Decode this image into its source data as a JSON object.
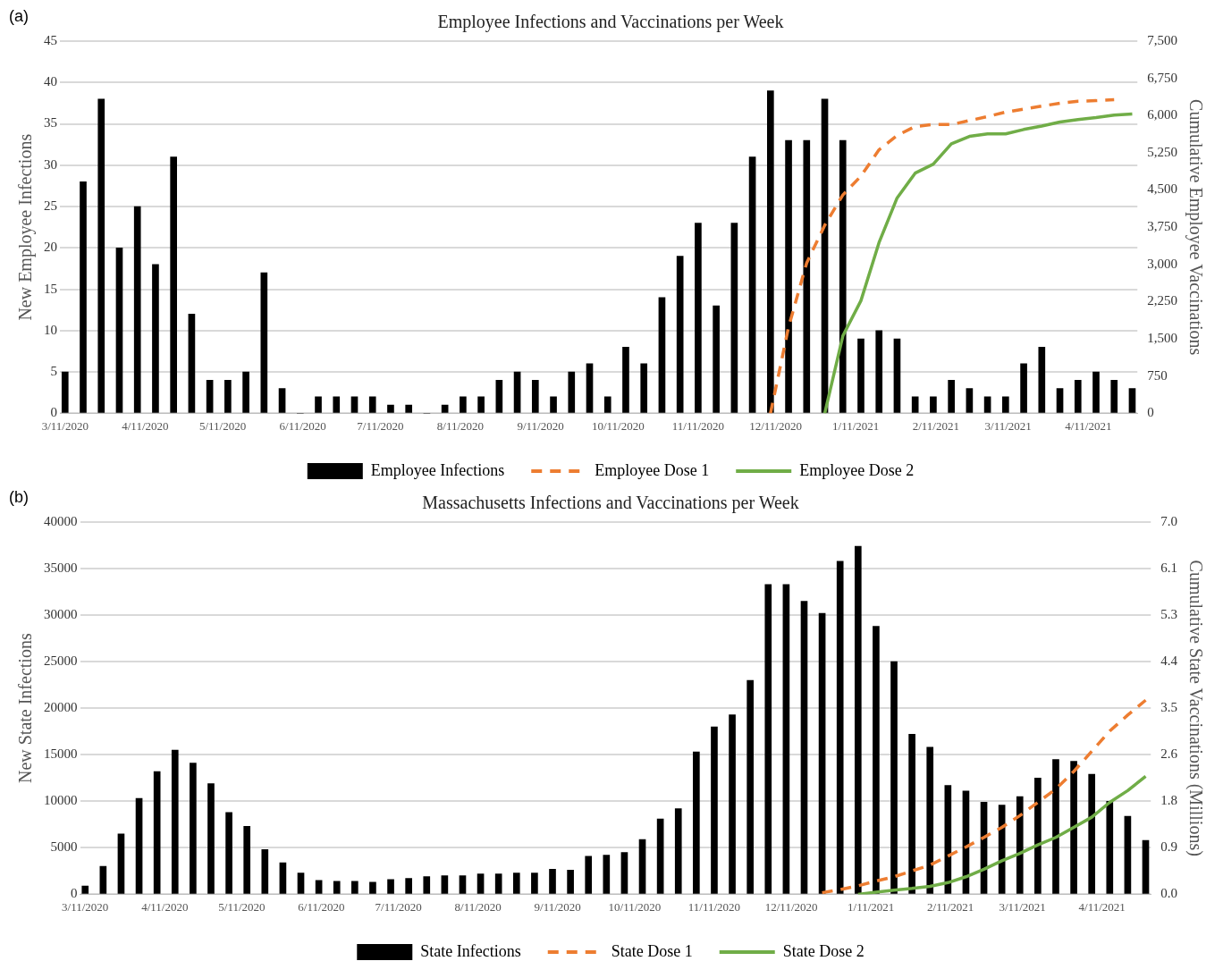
{
  "chart_data": [
    {
      "type": "bar",
      "title": "Employee Infections and Vaccinations per Week",
      "ylabel": "New Employee Infections",
      "y2label": "Cumulative Employee Vaccinations",
      "annotations": [
        "(a)"
      ],
      "x": [
        "2020-03-11",
        "2020-03-18",
        "2020-03-25",
        "2020-04-01",
        "2020-04-08",
        "2020-04-15",
        "2020-04-22",
        "2020-04-29",
        "2020-05-06",
        "2020-05-13",
        "2020-05-20",
        "2020-05-27",
        "2020-06-03",
        "2020-06-10",
        "2020-06-17",
        "2020-06-24",
        "2020-07-01",
        "2020-07-08",
        "2020-07-15",
        "2020-07-22",
        "2020-07-29",
        "2020-08-05",
        "2020-08-12",
        "2020-08-19",
        "2020-08-26",
        "2020-09-02",
        "2020-09-09",
        "2020-09-16",
        "2020-09-23",
        "2020-09-30",
        "2020-10-07",
        "2020-10-14",
        "2020-10-21",
        "2020-10-28",
        "2020-11-04",
        "2020-11-11",
        "2020-11-18",
        "2020-11-25",
        "2020-12-02",
        "2020-12-09",
        "2020-12-16",
        "2020-12-23",
        "2020-12-30",
        "2021-01-06",
        "2021-01-13",
        "2021-01-20",
        "2021-01-27",
        "2021-02-03",
        "2021-02-10",
        "2021-02-17",
        "2021-02-24",
        "2021-03-03",
        "2021-03-10",
        "2021-03-17",
        "2021-03-24",
        "2021-03-31",
        "2021-04-07",
        "2021-04-14",
        "2021-04-21",
        "2021-04-28"
      ],
      "series": [
        {
          "name": "Employee Infections",
          "color": "#000000",
          "values": [
            5,
            28,
            38,
            20,
            25,
            18,
            31,
            12,
            4,
            4,
            5,
            17,
            3,
            0,
            2,
            2,
            2,
            2,
            1,
            1,
            0,
            1,
            2,
            2,
            4,
            5,
            4,
            2,
            5,
            6,
            2,
            8,
            6,
            14,
            19,
            23,
            13,
            23,
            31,
            39,
            33,
            33,
            38,
            33,
            9,
            10,
            9,
            2,
            2,
            4,
            3,
            2,
            2,
            6,
            8,
            3,
            4,
            5,
            4,
            3
          ]
        },
        {
          "name": "Employee Dose 1",
          "type": "line",
          "axis": "y2",
          "line_style": "dashed",
          "color": "#ed7d31",
          "values": [
            null,
            null,
            null,
            null,
            null,
            null,
            null,
            null,
            null,
            null,
            null,
            null,
            null,
            null,
            null,
            null,
            null,
            null,
            null,
            null,
            null,
            null,
            null,
            null,
            null,
            null,
            null,
            null,
            null,
            null,
            null,
            null,
            null,
            null,
            null,
            null,
            null,
            null,
            null,
            0,
            1740,
            3030,
            3790,
            4400,
            4780,
            5310,
            5600,
            5780,
            5820,
            5820,
            5900,
            5980,
            6070,
            6130,
            6190,
            6250,
            6290,
            6300,
            6320,
            null
          ]
        },
        {
          "name": "Employee Dose 2",
          "type": "line",
          "axis": "y2",
          "line_style": "solid",
          "color": "#70ad47",
          "values": [
            null,
            null,
            null,
            null,
            null,
            null,
            null,
            null,
            null,
            null,
            null,
            null,
            null,
            null,
            null,
            null,
            null,
            null,
            null,
            null,
            null,
            null,
            null,
            null,
            null,
            null,
            null,
            null,
            null,
            null,
            null,
            null,
            null,
            null,
            null,
            null,
            null,
            null,
            null,
            null,
            null,
            null,
            0,
            1560,
            2270,
            3440,
            4340,
            4840,
            5020,
            5430,
            5580,
            5630,
            5630,
            5720,
            5790,
            5870,
            5920,
            5960,
            6010,
            6030
          ]
        }
      ],
      "xlim": [
        "2020-03-09",
        "2021-04-30"
      ],
      "xticks": [
        {
          "value": "2020-03-11",
          "label": "3/11/2020"
        },
        {
          "value": "2020-04-11",
          "label": "4/11/2020"
        },
        {
          "value": "2020-05-11",
          "label": "5/11/2020"
        },
        {
          "value": "2020-06-11",
          "label": "6/11/2020"
        },
        {
          "value": "2020-07-11",
          "label": "7/11/2020"
        },
        {
          "value": "2020-08-11",
          "label": "8/11/2020"
        },
        {
          "value": "2020-09-11",
          "label": "9/11/2020"
        },
        {
          "value": "2020-10-11",
          "label": "10/11/2020"
        },
        {
          "value": "2020-11-11",
          "label": "11/11/2020"
        },
        {
          "value": "2020-12-11",
          "label": "12/11/2020"
        },
        {
          "value": "2021-01-11",
          "label": "1/11/2021"
        },
        {
          "value": "2021-02-11",
          "label": "2/11/2021"
        },
        {
          "value": "2021-03-11",
          "label": "3/11/2021"
        },
        {
          "value": "2021-04-11",
          "label": "4/11/2021"
        }
      ],
      "ylim": [
        0,
        45
      ],
      "yticks": [
        0,
        5,
        10,
        15,
        20,
        25,
        30,
        35,
        40,
        45
      ],
      "y2lim": [
        0,
        7500
      ],
      "y2ticks": [
        0,
        750,
        {
          "value": 1500,
          "label": "1,500"
        },
        {
          "value": 2250,
          "label": "2,250"
        },
        {
          "value": 3000,
          "label": "3,000"
        },
        {
          "value": 3750,
          "label": "3,750"
        },
        {
          "value": 4500,
          "label": "4,500"
        },
        {
          "value": 5250,
          "label": "5,250"
        },
        {
          "value": 6000,
          "label": "6,000"
        },
        {
          "value": 6750,
          "label": "6,750"
        },
        {
          "value": 7500,
          "label": "7,500"
        }
      ],
      "grid": "y",
      "legend": "bottom",
      "marker": "none"
    },
    {
      "type": "bar",
      "title": "Massachusetts Infections and Vaccinations per Week",
      "ylabel": "New State Infections",
      "y2label": "Cumulative State Vaccinations (Millions)",
      "annotations": [
        "(b)"
      ],
      "x": [
        "2020-03-11",
        "2020-03-18",
        "2020-03-25",
        "2020-04-01",
        "2020-04-08",
        "2020-04-15",
        "2020-04-22",
        "2020-04-29",
        "2020-05-06",
        "2020-05-13",
        "2020-05-20",
        "2020-05-27",
        "2020-06-03",
        "2020-06-10",
        "2020-06-17",
        "2020-06-24",
        "2020-07-01",
        "2020-07-08",
        "2020-07-15",
        "2020-07-22",
        "2020-07-29",
        "2020-08-05",
        "2020-08-12",
        "2020-08-19",
        "2020-08-26",
        "2020-09-02",
        "2020-09-09",
        "2020-09-16",
        "2020-09-23",
        "2020-09-30",
        "2020-10-07",
        "2020-10-14",
        "2020-10-21",
        "2020-10-28",
        "2020-11-04",
        "2020-11-11",
        "2020-11-18",
        "2020-11-25",
        "2020-12-02",
        "2020-12-09",
        "2020-12-16",
        "2020-12-23",
        "2020-12-30",
        "2021-01-06",
        "2021-01-13",
        "2021-01-20",
        "2021-01-27",
        "2021-02-03",
        "2021-02-10",
        "2021-02-17",
        "2021-02-24",
        "2021-03-03",
        "2021-03-10",
        "2021-03-17",
        "2021-03-24",
        "2021-03-31",
        "2021-04-07",
        "2021-04-14",
        "2021-04-21",
        "2021-04-28"
      ],
      "series": [
        {
          "name": "State Infections",
          "color": "#000000",
          "values": [
            900,
            3000,
            6500,
            10300,
            13200,
            15500,
            14100,
            11900,
            8800,
            7300,
            4800,
            3400,
            2300,
            1500,
            1400,
            1400,
            1300,
            1600,
            1700,
            1900,
            2000,
            2000,
            2200,
            2200,
            2300,
            2300,
            2700,
            2600,
            4100,
            4200,
            4500,
            5900,
            8100,
            9200,
            15300,
            18000,
            19300,
            23000,
            33300,
            33300,
            31500,
            30200,
            35800,
            37400,
            28800,
            25000,
            17200,
            15800,
            11700,
            11100,
            9900,
            9600,
            10500,
            12500,
            14500,
            14300,
            12900,
            10000,
            8400,
            5800
          ]
        },
        {
          "name": "State Dose 1",
          "type": "line",
          "axis": "y2",
          "line_style": "dashed",
          "color": "#ed7d31",
          "values": [
            null,
            null,
            null,
            null,
            null,
            null,
            null,
            null,
            null,
            null,
            null,
            null,
            null,
            null,
            null,
            null,
            null,
            null,
            null,
            null,
            null,
            null,
            null,
            null,
            null,
            null,
            null,
            null,
            null,
            null,
            null,
            null,
            null,
            null,
            null,
            null,
            null,
            null,
            null,
            null,
            null,
            0.03,
            0.09,
            0.16,
            0.25,
            0.33,
            0.44,
            0.55,
            0.72,
            0.89,
            1.07,
            1.26,
            1.48,
            1.73,
            1.98,
            2.31,
            2.69,
            3.07,
            3.37,
            3.65
          ]
        },
        {
          "name": "State Dose 2",
          "type": "line",
          "axis": "y2",
          "line_style": "solid",
          "color": "#70ad47",
          "values": [
            null,
            null,
            null,
            null,
            null,
            null,
            null,
            null,
            null,
            null,
            null,
            null,
            null,
            null,
            null,
            null,
            null,
            null,
            null,
            null,
            null,
            null,
            null,
            null,
            null,
            null,
            null,
            null,
            null,
            null,
            null,
            null,
            null,
            null,
            null,
            null,
            null,
            null,
            null,
            null,
            null,
            null,
            null,
            0,
            0.04,
            0.08,
            0.11,
            0.15,
            0.22,
            0.33,
            0.47,
            0.63,
            0.77,
            0.93,
            1.07,
            1.26,
            1.45,
            1.73,
            1.95,
            2.22
          ]
        }
      ],
      "xlim": [
        "2020-03-09",
        "2021-04-30"
      ],
      "xticks": [
        {
          "value": "2020-03-11",
          "label": "3/11/2020"
        },
        {
          "value": "2020-04-11",
          "label": "4/11/2020"
        },
        {
          "value": "2020-05-11",
          "label": "5/11/2020"
        },
        {
          "value": "2020-06-11",
          "label": "6/11/2020"
        },
        {
          "value": "2020-07-11",
          "label": "7/11/2020"
        },
        {
          "value": "2020-08-11",
          "label": "8/11/2020"
        },
        {
          "value": "2020-09-11",
          "label": "9/11/2020"
        },
        {
          "value": "2020-10-11",
          "label": "10/11/2020"
        },
        {
          "value": "2020-11-11",
          "label": "11/11/2020"
        },
        {
          "value": "2020-12-11",
          "label": "12/11/2020"
        },
        {
          "value": "2021-01-11",
          "label": "1/11/2021"
        },
        {
          "value": "2021-02-11",
          "label": "2/11/2021"
        },
        {
          "value": "2021-03-11",
          "label": "3/11/2021"
        },
        {
          "value": "2021-04-11",
          "label": "4/11/2021"
        }
      ],
      "ylim": [
        0,
        40000
      ],
      "yticks": [
        0,
        5000,
        10000,
        15000,
        20000,
        25000,
        30000,
        35000,
        40000
      ],
      "y2lim": [
        0,
        7
      ],
      "y2ticks": [
        {
          "value": 0,
          "label": "0.0"
        },
        {
          "value": 0.875,
          "label": "0.9"
        },
        {
          "value": 1.75,
          "label": "1.8"
        },
        {
          "value": 2.625,
          "label": "2.6"
        },
        3.5,
        {
          "value": 4.375,
          "label": "4.4"
        },
        {
          "value": 5.25,
          "label": "5.3"
        },
        {
          "value": 6.125,
          "label": "6.1"
        },
        {
          "value": 7,
          "label": "7.0"
        }
      ],
      "grid": "y",
      "legend": "bottom",
      "marker": "none"
    }
  ]
}
